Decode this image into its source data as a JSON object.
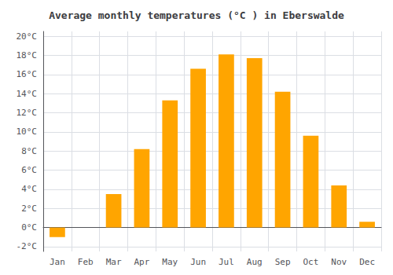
{
  "chart_data": {
    "type": "bar",
    "title": "Average monthly temperatures (°C ) in Eberswalde",
    "categories": [
      "Jan",
      "Feb",
      "Mar",
      "Apr",
      "May",
      "Jun",
      "Jul",
      "Aug",
      "Sep",
      "Oct",
      "Nov",
      "Dec"
    ],
    "values": [
      -1.0,
      0.0,
      3.5,
      8.2,
      13.3,
      16.6,
      18.1,
      17.7,
      14.2,
      9.6,
      4.4,
      0.6
    ],
    "color": "#FFA500",
    "ylim": [
      -2.5,
      20.5
    ],
    "yticks": [
      {
        "value": -2,
        "label": "-2°C"
      },
      {
        "value": 0,
        "label": "0°C"
      },
      {
        "value": 2,
        "label": "2°C"
      },
      {
        "value": 4,
        "label": "4°C"
      },
      {
        "value": 6,
        "label": "6°C"
      },
      {
        "value": 8,
        "label": "8°C"
      },
      {
        "value": 10,
        "label": "10°C"
      },
      {
        "value": 12,
        "label": "12°C"
      },
      {
        "value": 14,
        "label": "14°C"
      },
      {
        "value": 16,
        "label": "16°C"
      },
      {
        "value": 18,
        "label": "18°C"
      },
      {
        "value": 20,
        "label": "20°C"
      }
    ],
    "grid": true
  }
}
